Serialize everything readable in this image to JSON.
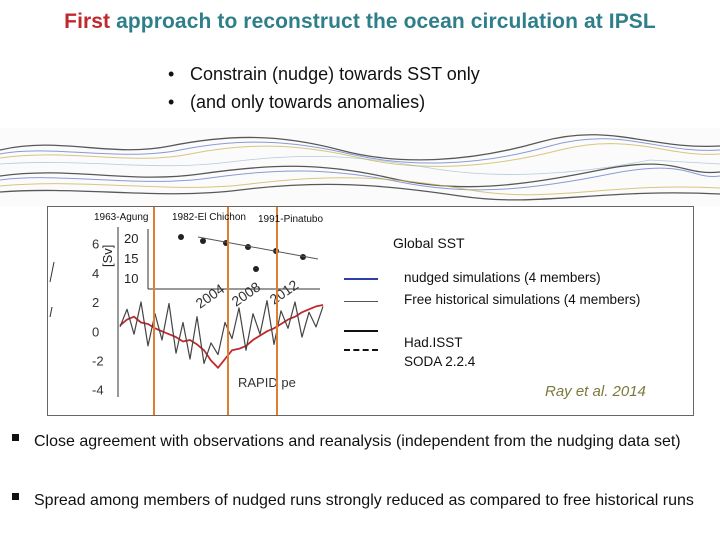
{
  "title": {
    "highlight": "First",
    "rest": "approach to reconstruct the ocean circulation at IPSL"
  },
  "bullets": [
    {
      "marker": "•",
      "text": "Constrain (nudge) towards SST only"
    },
    {
      "marker": "•",
      "text": "(and only towards anomalies)"
    }
  ],
  "eruptions": [
    {
      "label": "1963-Agung"
    },
    {
      "label": "1982-El Chichon"
    },
    {
      "label": "1991-Pinatubo"
    }
  ],
  "inset": {
    "ylabel": "[Sv]",
    "xticks": [
      "2004",
      "2008",
      "2012"
    ],
    "yticks": [
      "20",
      "15",
      "10"
    ],
    "caption": "RAPID pe"
  },
  "chart_data": {
    "type": "line",
    "title": "",
    "ylabel": "",
    "ylim": [
      -4.5,
      7
    ],
    "yticks": [
      "6",
      "4",
      "2",
      "0",
      "-2",
      "-4"
    ],
    "series": [
      {
        "name": "nudged simulations (4 members)",
        "color": "#c0282d",
        "values": [
          0.4,
          0.8,
          1.0,
          0.6,
          0.5,
          0.2,
          0.0,
          -0.2,
          -0.4,
          -0.7,
          -0.6,
          -0.9,
          -1.3,
          -2.0,
          -2.5,
          -1.9,
          -1.3,
          -1.2,
          -1.0,
          -0.6,
          -0.3,
          0.0,
          0.2,
          0.5,
          0.8,
          1.0,
          1.3,
          1.5,
          1.7,
          1.8
        ]
      },
      {
        "name": "Free historical simulations (4 members)",
        "color": "#444444",
        "values": [
          0.3,
          1.5,
          -0.2,
          2.0,
          -1.0,
          1.2,
          -0.6,
          1.9,
          -1.5,
          0.6,
          -1.9,
          1.0,
          -2.2,
          -0.8,
          -1.6,
          0.6,
          -0.5,
          1.6,
          -1.3,
          1.2,
          -0.2,
          2.1,
          -0.9,
          1.4,
          0.2,
          2.0,
          -0.4,
          1.3,
          0.3,
          1.7
        ]
      }
    ]
  },
  "legend": {
    "title": "Global SST",
    "items": [
      {
        "label": "nudged simulations (4 members)",
        "color": "#2b3fa6",
        "style": "solid"
      },
      {
        "label": "Free historical simulations (4 members)",
        "color": "#555555",
        "style": "solid"
      },
      {
        "label": "Had.ISST",
        "color": "#111111",
        "style": "solid"
      },
      {
        "label": "SODA 2.2.4",
        "color": "#111111",
        "style": "dashed"
      }
    ]
  },
  "citation": "Ray et al. 2014",
  "observations": [
    {
      "marker": "§",
      "text": "Close agreement with observations and reanalysis (independent from the nudging data set)"
    },
    {
      "marker": "§",
      "text": "Spread among members of nudged runs strongly reduced as compared to free historical runs"
    }
  ]
}
